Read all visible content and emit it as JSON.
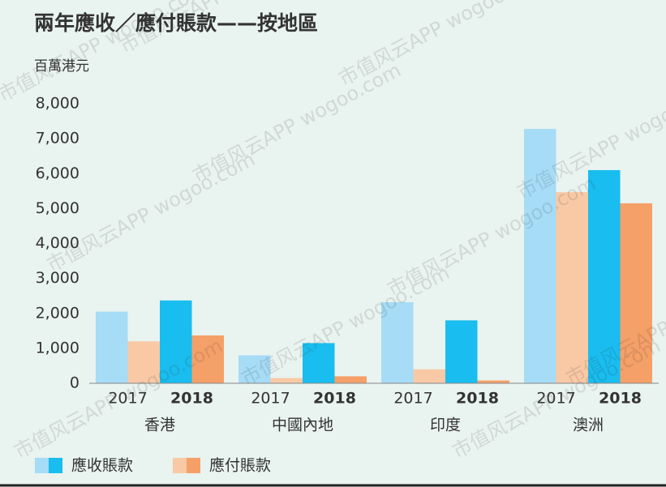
{
  "chart_data": {
    "type": "grouped-bar",
    "title": "兩年應收／應付賬款——按地區",
    "y_label": "百萬港元",
    "watermark": "市值风云APP wogoo.com",
    "groups": [
      "香港",
      "中國內地",
      "印度",
      "澳洲"
    ],
    "categories": [
      "2017",
      "2018",
      "2017",
      "2018",
      "2017",
      "2018",
      "2017",
      "2018"
    ],
    "series": [
      {
        "name": "應收賬款",
        "colors": [
          "#a6dcf6",
          "#19bdef"
        ],
        "values": [
          2050,
          2370,
          800,
          1150,
          2320,
          1800,
          7280,
          6100
        ]
      },
      {
        "name": "應付賬款",
        "colors": [
          "#f9c9a6",
          "#f5a068"
        ],
        "values": [
          1200,
          1370,
          150,
          200,
          400,
          80,
          5470,
          5150
        ]
      }
    ],
    "ylim": [
      0,
      8000
    ],
    "yticks": [
      0,
      {
        "value": 1000,
        "label": "1,000"
      },
      {
        "value": 2000,
        "label": "2,000"
      },
      {
        "value": 3000,
        "label": "3,000"
      },
      {
        "value": 4000,
        "label": "4,000"
      },
      {
        "value": 5000,
        "label": "5,000"
      },
      {
        "value": 6000,
        "label": "6,000"
      },
      {
        "value": 7000,
        "label": "7,000"
      },
      {
        "value": 8000,
        "label": "8,000"
      }
    ]
  }
}
